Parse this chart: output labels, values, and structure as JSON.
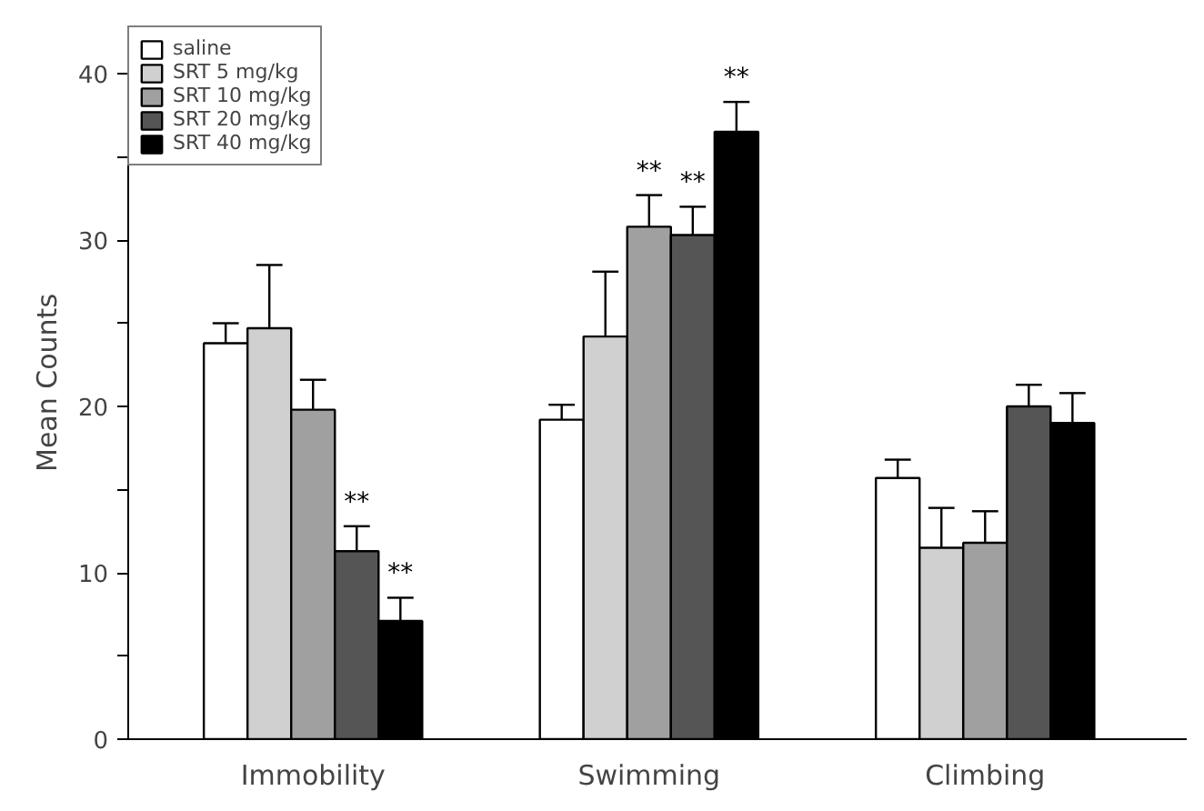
{
  "chart_data": {
    "type": "bar",
    "ylabel": "Mean Counts",
    "categories": [
      "Immobility",
      "Swimming",
      "Climbing"
    ],
    "series": [
      {
        "name": "saline",
        "color": "#ffffff",
        "values": [
          23.8,
          19.2,
          15.7
        ],
        "errors": [
          [
            23.8,
            25.0
          ],
          [
            19.2,
            20.1
          ],
          [
            15.7,
            16.8
          ]
        ]
      },
      {
        "name": "SRT 5 mg/kg",
        "color": "#d0d0d0",
        "values": [
          24.7,
          24.2,
          11.5
        ],
        "errors": [
          [
            24.7,
            28.5
          ],
          [
            24.2,
            28.1
          ],
          [
            11.5,
            13.9
          ]
        ]
      },
      {
        "name": "SRT 10 mg/kg",
        "color": "#a0a0a0",
        "values": [
          19.8,
          30.8,
          11.8
        ],
        "errors": [
          [
            19.8,
            21.6
          ],
          [
            30.8,
            32.7
          ],
          [
            11.8,
            13.7
          ]
        ],
        "value_labels": [
          null,
          "**",
          null
        ]
      },
      {
        "name": "SRT 20 mg/kg",
        "color": "#555555",
        "values": [
          11.3,
          30.3,
          20.0
        ],
        "errors": [
          [
            11.3,
            12.8
          ],
          [
            30.3,
            32.0
          ],
          [
            20.0,
            21.3
          ]
        ],
        "value_labels": [
          "**",
          "**",
          null
        ]
      },
      {
        "name": "SRT 40 mg/kg",
        "color": "#000000",
        "values": [
          7.1,
          36.5,
          19.0
        ],
        "errors": [
          [
            7.1,
            8.5
          ],
          [
            36.5,
            38.3
          ],
          [
            19.0,
            20.8
          ]
        ],
        "value_labels": [
          "**",
          "**",
          null
        ]
      }
    ],
    "ylim": [
      0,
      40
    ],
    "yticks": [
      0,
      {
        "value": 5,
        "label": null
      },
      10,
      {
        "value": 15,
        "label": null
      },
      20,
      {
        "value": 25,
        "label": null
      },
      30,
      {
        "value": 35,
        "label": null
      },
      40
    ],
    "grid": false,
    "legend": "top left"
  }
}
